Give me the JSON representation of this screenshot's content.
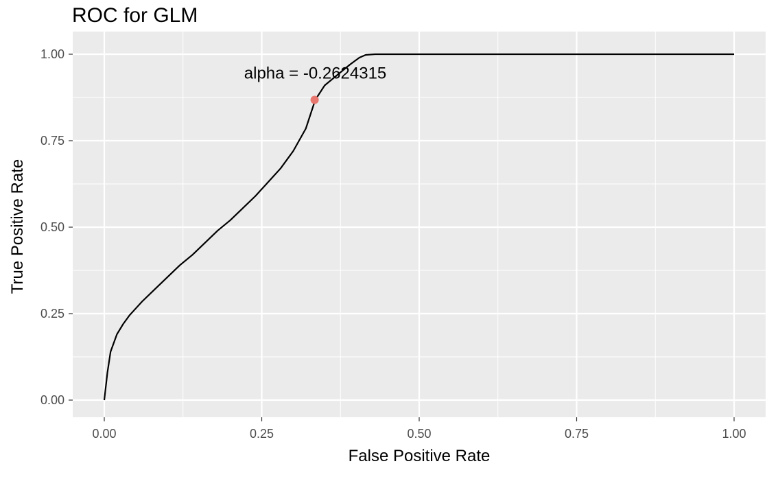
{
  "chart_data": {
    "type": "line",
    "title": "ROC for GLM",
    "xlabel": "False Positive Rate",
    "ylabel": "True Positive Rate",
    "xlim": [
      0,
      1
    ],
    "ylim": [
      0,
      1
    ],
    "x_ticks": [
      0,
      0.25,
      0.5,
      0.75,
      1
    ],
    "x_tick_labels": [
      "0.00",
      "0.25",
      "0.50",
      "0.75",
      "1.00"
    ],
    "y_ticks": [
      0,
      0.25,
      0.5,
      0.75,
      1
    ],
    "y_tick_labels": [
      "0.00",
      "0.25",
      "0.50",
      "0.75",
      "1.00"
    ],
    "grid": true,
    "legend": "none",
    "colors": {
      "panel": "#ebebeb",
      "grid": "#ffffff",
      "line": "#000000",
      "point": "#e8776f"
    },
    "series": [
      {
        "x": [
          0,
          0.005,
          0.01,
          0.02,
          0.03,
          0.04,
          0.05,
          0.06,
          0.08,
          0.1,
          0.12,
          0.14,
          0.16,
          0.18,
          0.2,
          0.22,
          0.24,
          0.26,
          0.28,
          0.3,
          0.32,
          0.335,
          0.35,
          0.37,
          0.39,
          0.405,
          0.415,
          0.43,
          0.5,
          0.6,
          0.7,
          0.8,
          0.9,
          1.0
        ],
        "y": [
          0,
          0.08,
          0.14,
          0.19,
          0.22,
          0.245,
          0.265,
          0.285,
          0.32,
          0.355,
          0.39,
          0.42,
          0.455,
          0.49,
          0.52,
          0.555,
          0.59,
          0.63,
          0.67,
          0.72,
          0.785,
          0.868,
          0.91,
          0.94,
          0.97,
          0.99,
          0.998,
          1.0,
          1.0,
          1.0,
          1.0,
          1.0,
          1.0,
          1.0
        ]
      }
    ],
    "highlight_point": {
      "x": 0.334,
      "y": 0.868
    },
    "annotation": {
      "text": "alpha = -0.2624315",
      "x": 0.335,
      "y": 0.945
    }
  }
}
